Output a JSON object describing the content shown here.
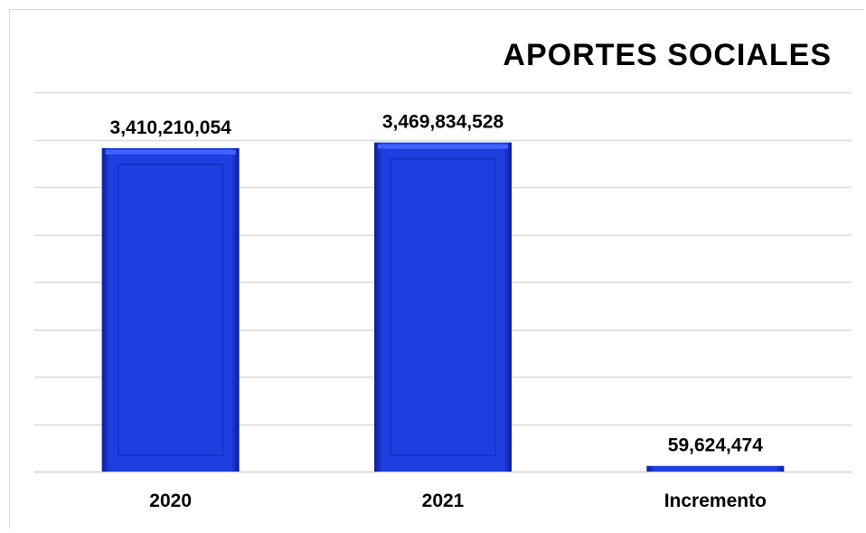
{
  "chart_data": {
    "type": "bar",
    "title": "APORTES SOCIALES",
    "categories": [
      "2020",
      "2021",
      "Incremento"
    ],
    "values": [
      3410210054,
      3469834528,
      59624474
    ],
    "data_labels": [
      "3,410,210,054",
      "3,469,834,528",
      "59,624,474"
    ],
    "xlabel": "",
    "ylabel": "",
    "ylim": [
      0,
      4000000000
    ],
    "grid": true,
    "legend": "none",
    "colors": {
      "bar": "#1f3ee0",
      "bar_dark": "#0a1f96",
      "bar_light": "#3f63ff",
      "grid": "#d9d9d9"
    }
  }
}
